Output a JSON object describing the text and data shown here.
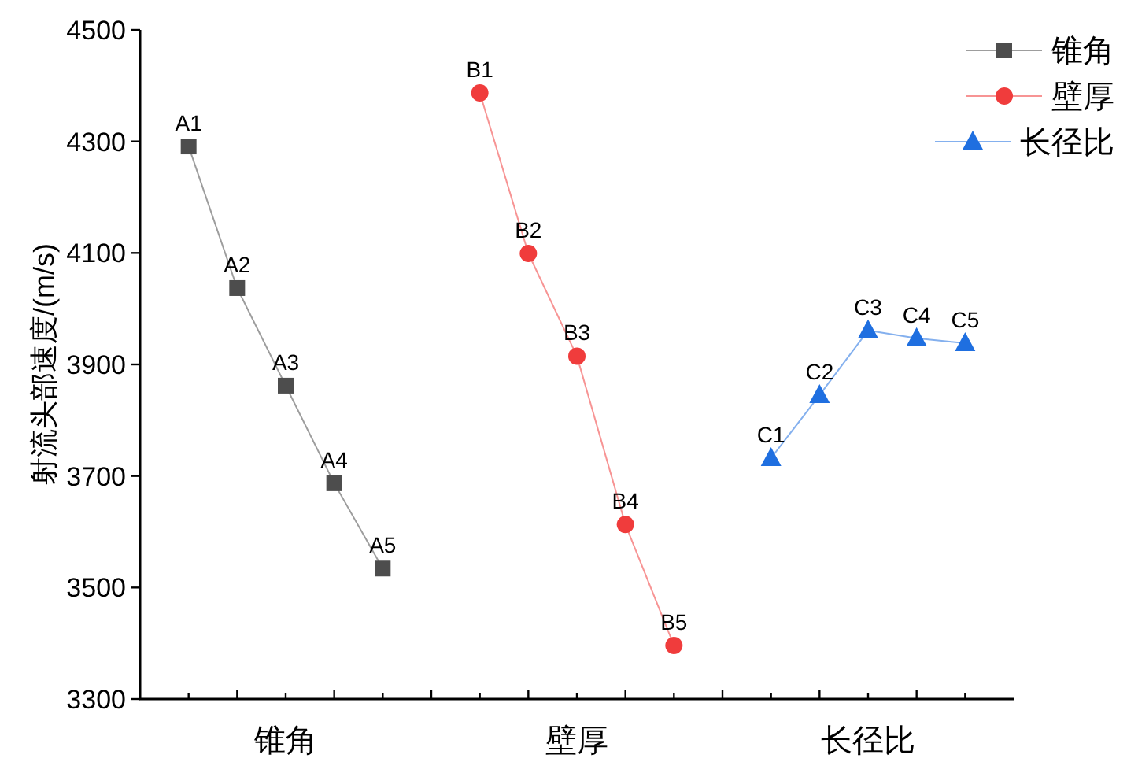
{
  "chart_data": {
    "type": "line",
    "ylabel": "射流头部速度/(m/s)",
    "categories": [
      null,
      null,
      "锥角",
      null,
      null,
      null,
      null,
      null,
      "壁厚",
      null,
      null,
      null,
      null,
      null,
      "长径比",
      null,
      null
    ],
    "ylim": [
      3300,
      4500
    ],
    "yticks": [
      3300,
      3500,
      3700,
      3900,
      4100,
      4300,
      4500
    ],
    "grid": false,
    "legend": "top right",
    "series": [
      {
        "name": "锥角",
        "color": "#4d4d4d",
        "marker": "square",
        "values": [
          4291,
          4037,
          3862,
          3687,
          3534,
          null,
          null,
          null,
          null,
          null,
          null,
          null,
          null,
          null,
          null,
          null,
          null
        ],
        "value_labels": [
          "A1",
          "A2",
          "A3",
          "A4",
          "A5",
          null,
          null,
          null,
          null,
          null,
          null,
          null,
          null,
          null,
          null,
          null,
          null
        ]
      },
      {
        "name": "壁厚",
        "color": "#f03c3c",
        "marker": "circle",
        "values": [
          null,
          null,
          null,
          null,
          null,
          null,
          4387,
          4099,
          3915,
          3613,
          3396,
          null,
          null,
          null,
          null,
          null,
          null
        ],
        "value_labels": [
          null,
          null,
          null,
          null,
          null,
          null,
          "B1",
          "B2",
          "B3",
          "B4",
          "B5",
          null,
          null,
          null,
          null,
          null,
          null
        ]
      },
      {
        "name": "长径比",
        "color": "#1f6fe0",
        "marker": "triangle",
        "values": [
          null,
          null,
          null,
          null,
          null,
          null,
          null,
          null,
          null,
          null,
          null,
          null,
          3732,
          3845,
          3961,
          3947,
          3938
        ],
        "value_labels": [
          null,
          null,
          null,
          null,
          null,
          null,
          null,
          null,
          null,
          null,
          null,
          null,
          "C1",
          "C2",
          "C3",
          "C4",
          "C5"
        ]
      }
    ]
  }
}
